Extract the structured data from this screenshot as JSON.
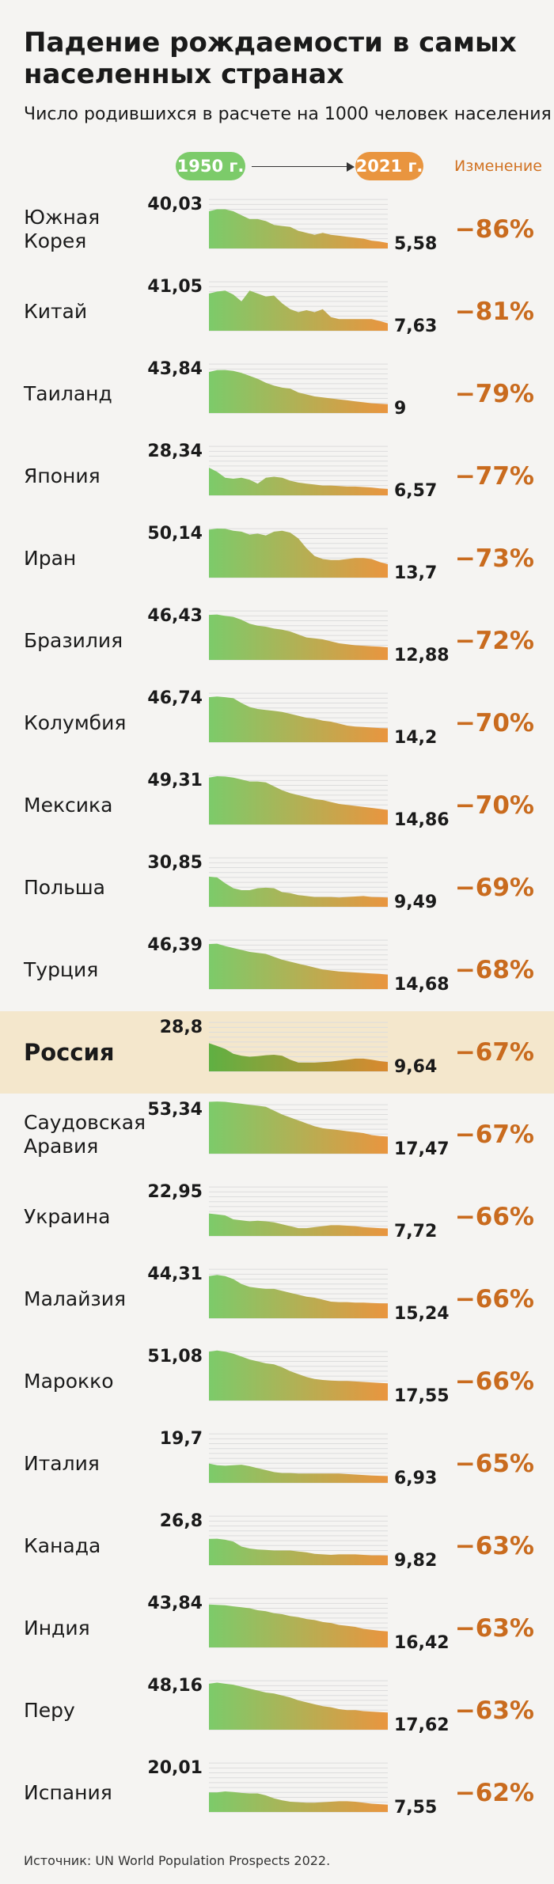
{
  "header": {
    "title": "Падение рождаемости в самых населенных странах",
    "subtitle": "Число родившихся в расчете на 1000 человек населения",
    "start_label": "1950 г.",
    "end_label": "2021 г.",
    "change_label": "Изменение"
  },
  "colors": {
    "start": "#7ccb6a",
    "end": "#e9953f",
    "highlight_bg": "#f4e7cc",
    "change_text": "#c96b1e"
  },
  "chart_data": {
    "type": "area",
    "title": "Падение рождаемости в самых населенных странах",
    "subtitle": "Число родившихся в расчете на 1000 человек населения",
    "x_range": [
      1950,
      2021
    ],
    "y_range": [
      0,
      55
    ],
    "rows": [
      {
        "name": "Южная\nКорея",
        "start": "40,03",
        "end": "5,58",
        "change": "−86%",
        "series": [
          38,
          40.03,
          40,
          38,
          34,
          30,
          30,
          28,
          24,
          23,
          22,
          18,
          16,
          14,
          16,
          14,
          13,
          12,
          11,
          10,
          8,
          7,
          5.58
        ]
      },
      {
        "name": "Китай",
        "start": "41,05",
        "end": "7,63",
        "change": "−81%",
        "series": [
          38,
          40,
          41.05,
          37,
          30,
          41,
          38,
          35,
          36,
          28,
          22,
          19,
          21,
          19,
          22,
          14,
          12,
          12,
          12,
          12,
          12,
          10,
          7.63
        ]
      },
      {
        "name": "Таиланд",
        "start": "43,84",
        "end": "9",
        "change": "−79%",
        "series": [
          42,
          43.84,
          44,
          43,
          41,
          38,
          35,
          31,
          28,
          26,
          25,
          21,
          19,
          17,
          16,
          15,
          14,
          13,
          12,
          11,
          10,
          9.5,
          9
        ]
      },
      {
        "name": "Япония",
        "start": "28,34",
        "end": "6,57",
        "change": "−77%",
        "series": [
          28.34,
          24,
          18,
          17,
          18,
          16,
          12,
          18,
          19,
          18,
          15,
          13,
          12,
          11,
          10,
          10,
          9.5,
          9,
          9,
          8.5,
          8,
          7,
          6.57
        ]
      },
      {
        "name": "Иран",
        "start": "50,14",
        "end": "13,7",
        "change": "−73%",
        "series": [
          49,
          50.14,
          50,
          48,
          47,
          44,
          45,
          43,
          47,
          48,
          46,
          40,
          30,
          22,
          19,
          18,
          18,
          19,
          20,
          20,
          19,
          16,
          13.7
        ]
      },
      {
        "name": "Бразилия",
        "start": "46,43",
        "end": "12,88",
        "change": "−72%",
        "series": [
          46,
          46.43,
          45,
          44,
          41,
          37,
          35,
          34,
          32,
          31,
          29,
          26,
          23,
          22,
          21,
          19,
          17,
          16,
          15,
          14.5,
          14,
          13.5,
          12.88
        ]
      },
      {
        "name": "Колумбия",
        "start": "46,74",
        "end": "14,2",
        "change": "−70%",
        "series": [
          46,
          46.74,
          46,
          45,
          40,
          36,
          34,
          33,
          32,
          31,
          29,
          27,
          25,
          24,
          22,
          21,
          19,
          17,
          16,
          15.5,
          15,
          14.5,
          14.2
        ]
      },
      {
        "name": "Мексика",
        "start": "49,31",
        "end": "14,86",
        "change": "−70%",
        "series": [
          48,
          49.31,
          49,
          48,
          46,
          44,
          44,
          43,
          39,
          35,
          32,
          30,
          28,
          26,
          25,
          23,
          21,
          20,
          19,
          18,
          17,
          16,
          14.86
        ]
      },
      {
        "name": "Польша",
        "start": "30,85",
        "end": "9,49",
        "change": "−69%",
        "series": [
          30.85,
          30,
          24,
          19,
          17,
          17,
          19,
          19.5,
          19,
          15,
          14,
          12,
          11,
          10,
          10,
          10,
          9.5,
          10,
          10.5,
          11,
          10,
          9.8,
          9.49
        ]
      },
      {
        "name": "Турция",
        "start": "46,39",
        "end": "14,68",
        "change": "−68%",
        "series": [
          46,
          46.39,
          44,
          42,
          40,
          38,
          37,
          36,
          33,
          30,
          28,
          26,
          24,
          22,
          20,
          19,
          18,
          17.5,
          17,
          16.5,
          16,
          15.5,
          14.68
        ]
      },
      {
        "name": "Россия",
        "start": "28,8",
        "end": "9,64",
        "change": "−67%",
        "highlight": true,
        "series": [
          28.8,
          26,
          23,
          18,
          16,
          15,
          15.5,
          16.5,
          17,
          16,
          12,
          9,
          9,
          9,
          9.5,
          10,
          11,
          12,
          13,
          13,
          12,
          10.5,
          9.64
        ]
      },
      {
        "name": "Саудовская\nАравия",
        "start": "53,34",
        "end": "17,47",
        "change": "−67%",
        "series": [
          53,
          53.34,
          53,
          52,
          51,
          50,
          49,
          48,
          44,
          40,
          37,
          34,
          31,
          28,
          26,
          25,
          24,
          23,
          22,
          21,
          19,
          18,
          17.47
        ]
      },
      {
        "name": "Украина",
        "start": "22,95",
        "end": "7,72",
        "change": "−66%",
        "series": [
          22.95,
          22,
          21,
          17,
          16,
          15,
          15.5,
          15,
          14,
          12,
          10,
          8,
          8,
          9,
          10,
          11,
          11,
          10.5,
          10,
          9,
          8.5,
          8,
          7.72
        ]
      },
      {
        "name": "Малайзия",
        "start": "44,31",
        "end": "15,24",
        "change": "−66%",
        "series": [
          43,
          44.31,
          43,
          40,
          35,
          32,
          31,
          30,
          30,
          28,
          26,
          24,
          22,
          21,
          19,
          17,
          16.5,
          16.5,
          16,
          16,
          15.5,
          15.3,
          15.24
        ]
      },
      {
        "name": "Марокко",
        "start": "51,08",
        "end": "17,55",
        "change": "−66%",
        "series": [
          50,
          51.08,
          50,
          48,
          45,
          42,
          40,
          38,
          37,
          34,
          30,
          27,
          24,
          22,
          21,
          20.5,
          20,
          20,
          19.5,
          19,
          18.5,
          18,
          17.55
        ]
      },
      {
        "name": "Италия",
        "start": "19,7",
        "end": "6,93",
        "change": "−65%",
        "series": [
          19.7,
          18,
          17.5,
          18,
          18.5,
          17,
          15,
          13,
          11,
          10,
          10,
          9.5,
          9.5,
          9.5,
          9.5,
          9.5,
          9.5,
          9,
          8.5,
          8,
          7.5,
          7.2,
          6.93
        ]
      },
      {
        "name": "Канада",
        "start": "26,8",
        "end": "9,82",
        "change": "−63%",
        "series": [
          26.8,
          27,
          26,
          24,
          19,
          17,
          16,
          15.5,
          15,
          15,
          15,
          14,
          13,
          11.5,
          11,
          10.5,
          11,
          11,
          11,
          10.5,
          10,
          10,
          9.82
        ]
      },
      {
        "name": "Индия",
        "start": "43,84",
        "end": "16,42",
        "change": "−63%",
        "series": [
          43.84,
          43.5,
          43,
          42,
          41,
          40,
          38,
          37,
          35,
          34,
          32,
          31,
          29,
          28,
          26,
          25,
          23,
          22,
          21,
          19,
          18,
          17,
          16.42
        ]
      },
      {
        "name": "Перу",
        "start": "48,16",
        "end": "17,62",
        "change": "−63%",
        "series": [
          47,
          48.16,
          47,
          46,
          44,
          42,
          40,
          38,
          37,
          35,
          33,
          30,
          28,
          26,
          24,
          23,
          21,
          20,
          20,
          19,
          18.5,
          18,
          17.62
        ]
      },
      {
        "name": "Испания",
        "start": "20,01",
        "end": "7,55",
        "change": "−62%",
        "series": [
          20.01,
          20,
          21,
          20.5,
          19.5,
          19,
          19,
          17,
          14,
          12,
          10.5,
          10,
          9.5,
          9.5,
          10,
          10.5,
          11,
          11,
          10.5,
          9.5,
          8.5,
          8,
          7.55
        ]
      }
    ]
  },
  "source": "Источник: UN World Population Prospects 2022."
}
